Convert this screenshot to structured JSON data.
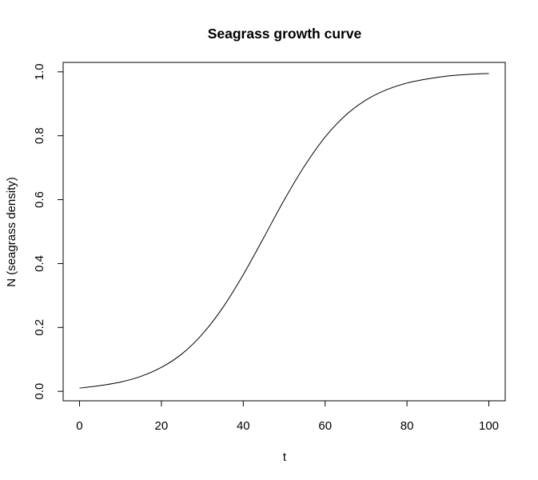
{
  "chart_data": {
    "type": "line",
    "title": "Seagrass growth curve",
    "xlabel": "t",
    "ylabel": "N (seagrass density)",
    "xlim": [
      -4,
      104
    ],
    "ylim": [
      -0.0296,
      1.0296
    ],
    "xticks": [
      0,
      20,
      40,
      60,
      80,
      100
    ],
    "yticks": [
      0.0,
      0.2,
      0.4,
      0.6,
      0.8,
      1.0
    ],
    "xtick_labels": [
      "0",
      "20",
      "40",
      "60",
      "80",
      "100"
    ],
    "ytick_labels": [
      "0.0",
      "0.2",
      "0.4",
      "0.6",
      "0.8",
      "1.0"
    ],
    "grid": false,
    "line_color": "#000000",
    "series": [
      {
        "x": [
          0,
          5,
          10,
          15,
          20,
          25,
          30,
          35,
          40,
          45,
          50,
          55,
          60,
          65,
          70,
          75,
          80,
          85,
          90,
          95,
          100
        ],
        "values": [
          0.01,
          0.018,
          0.029,
          0.047,
          0.075,
          0.117,
          0.179,
          0.262,
          0.365,
          0.481,
          0.599,
          0.706,
          0.796,
          0.864,
          0.912,
          0.944,
          0.965,
          0.978,
          0.987,
          0.992,
          0.995
        ]
      }
    ]
  }
}
